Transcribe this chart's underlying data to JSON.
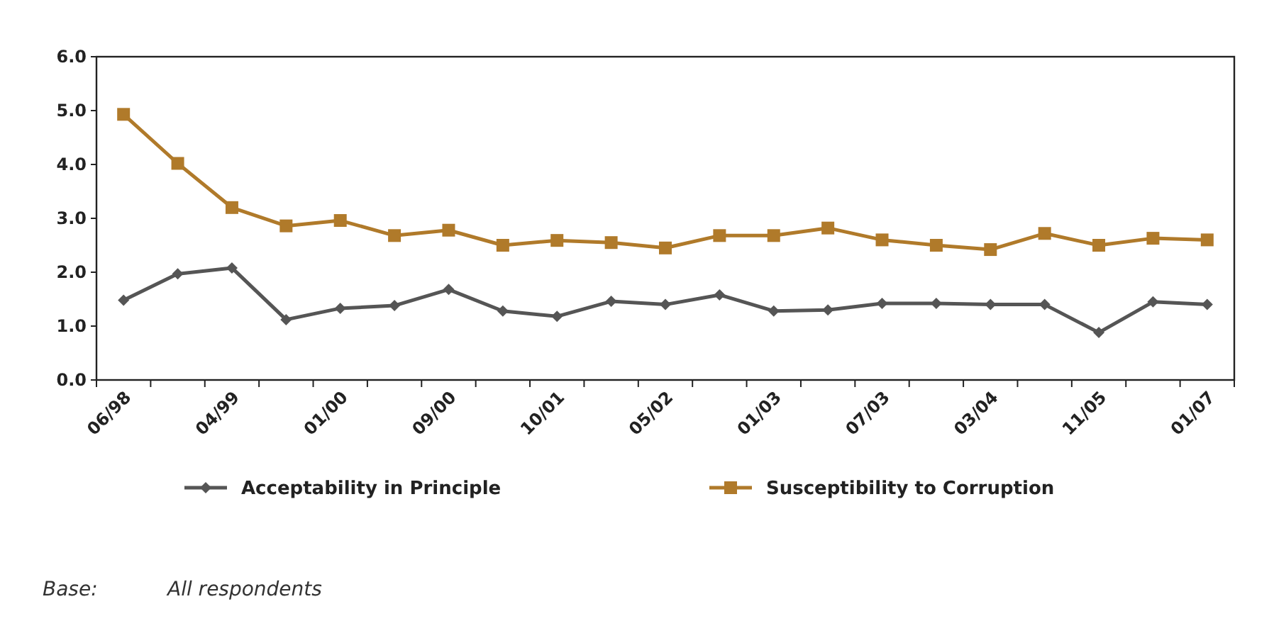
{
  "chart_data": {
    "type": "line",
    "categories": [
      "06/98",
      null,
      "04/99",
      null,
      "01/00",
      null,
      "09/00",
      null,
      "10/01",
      null,
      "05/02",
      null,
      "01/03",
      null,
      "07/03",
      null,
      "03/04",
      null,
      "11/05",
      null,
      "01/07"
    ],
    "series": [
      {
        "name": "Acceptability in Principle",
        "color": "#555555",
        "marker": "diamond",
        "values": [
          1.48,
          1.97,
          2.08,
          1.12,
          1.33,
          1.38,
          1.68,
          1.28,
          1.18,
          1.46,
          1.4,
          1.58,
          1.28,
          1.3,
          1.42,
          1.42,
          1.4,
          1.4,
          0.88,
          1.45,
          1.4
        ]
      },
      {
        "name": "Susceptibility to Corruption",
        "color": "#b07a2a",
        "marker": "square",
        "values": [
          4.93,
          4.02,
          3.2,
          2.86,
          2.96,
          2.68,
          2.78,
          2.5,
          2.59,
          2.55,
          2.45,
          2.68,
          2.68,
          2.82,
          2.6,
          2.5,
          2.42,
          2.72,
          2.5,
          2.63,
          2.6
        ]
      }
    ],
    "ylim": [
      0,
      6
    ],
    "yticks": [
      {
        "value": 0,
        "label": "0.0"
      },
      {
        "value": 1,
        "label": "1.0"
      },
      {
        "value": 2,
        "label": "2.0"
      },
      {
        "value": 3,
        "label": "3.0"
      },
      {
        "value": 4,
        "label": "4.0"
      },
      {
        "value": 5,
        "label": "5.0"
      },
      {
        "value": 6,
        "label": "6.0"
      }
    ],
    "grid": false,
    "legend": "bottom",
    "line_style": "solid",
    "annotations": [
      "Base:\tAll respondents"
    ]
  }
}
